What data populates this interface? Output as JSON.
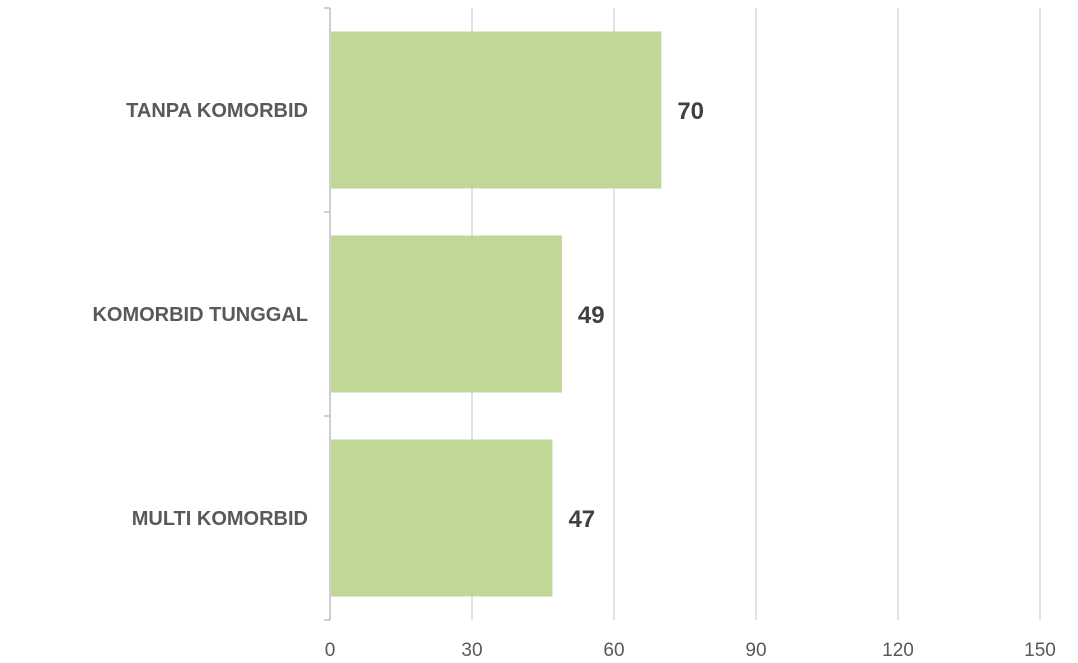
{
  "chart_data": {
    "type": "bar",
    "orientation": "horizontal",
    "categories": [
      "TANPA KOMORBID",
      "KOMORBID TUNGGAL",
      "MULTI KOMORBID"
    ],
    "values": [
      70,
      49,
      47
    ],
    "data_labels": [
      "70",
      "49",
      "47"
    ],
    "title": "",
    "xlabel": "",
    "ylabel": "",
    "xlim": [
      0,
      150
    ],
    "x_ticks": [
      0,
      30,
      60,
      90,
      120,
      150
    ],
    "x_tick_labels": [
      "0",
      "30",
      "60",
      "90",
      "120",
      "150"
    ],
    "grid": true,
    "legend": "none",
    "colors": {
      "bar": "#c0d797",
      "gridline": "#d9d9d9",
      "category_text": "#595959",
      "data_label_text": "#404040"
    }
  }
}
